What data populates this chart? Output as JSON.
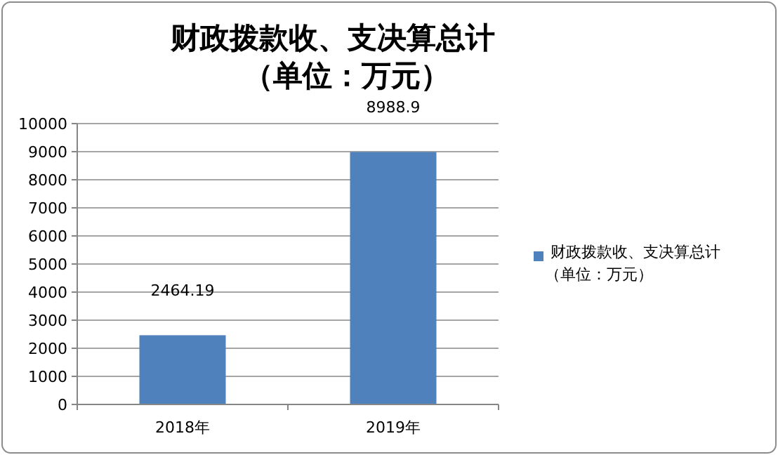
{
  "chart_data": {
    "type": "bar",
    "title": "财政拨款收、支决算总计（单位：万元）",
    "categories": [
      "2018年",
      "2019年"
    ],
    "series": [
      {
        "name": "财政拨款收、支决算总计（单位：万元）",
        "color": "#4f81bd",
        "values": [
          2464.19,
          8988.9
        ]
      }
    ],
    "ylim": [
      0,
      10000
    ],
    "yticks": [
      0,
      1000,
      2000,
      3000,
      4000,
      5000,
      6000,
      7000,
      8000,
      9000,
      10000
    ],
    "grid": "y",
    "legend": "right",
    "data_labels": true
  }
}
